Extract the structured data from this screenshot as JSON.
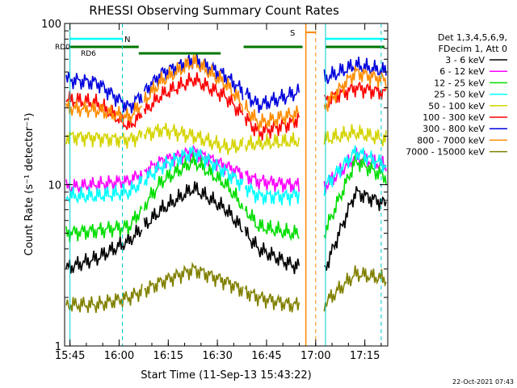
{
  "chart_data": {
    "type": "line",
    "title": "RHESSI Observing Summary Count Rates",
    "xlabel": "Start Time (11-Sep-13 15:43:22)",
    "ylabel": "Count Rate (s⁻¹ detector⁻¹)",
    "y_scale": "log",
    "ylim": [
      1,
      100
    ],
    "xlim": [
      "15:43:22",
      "17:22:00"
    ],
    "x_ticks": [
      "15:45",
      "16:00",
      "16:15",
      "16:30",
      "16:45",
      "17:00",
      "17:15"
    ],
    "y_ticks": [
      "1",
      "10",
      "100"
    ],
    "legend_title_lines": [
      "Det 1,3,4,5,6,9,",
      "FDecim 1, Att 0"
    ],
    "legend_position": "right",
    "series": [
      {
        "name": "3 - 6 keV",
        "color": "#000000",
        "values": [
          3.0,
          3.5,
          4.5,
          7.0,
          9.5,
          7.0,
          4.0,
          3.2,
          2.8,
          9,
          7.5
        ]
      },
      {
        "name": "6 - 12 keV",
        "color": "#ff00ff",
        "values": [
          9.5,
          10.0,
          10.5,
          14.0,
          16.0,
          13.0,
          10.5,
          10.0,
          9.5,
          15,
          13
        ]
      },
      {
        "name": "12 - 25 keV",
        "color": "#00dd00",
        "values": [
          5.0,
          5.2,
          5.5,
          10.5,
          14.0,
          10.0,
          5.5,
          5.0,
          4.8,
          14,
          11
        ]
      },
      {
        "name": "25 - 50 keV",
        "color": "#00ffff",
        "values": [
          8.5,
          8.5,
          9.0,
          13.0,
          16.0,
          12.0,
          8.5,
          8.5,
          9.5,
          16,
          13
        ]
      },
      {
        "name": "50 - 100 keV",
        "color": "#d4d400",
        "values": [
          20.0,
          19.5,
          19.0,
          22.0,
          20.0,
          17.0,
          18.0,
          18.5,
          19.0,
          21,
          19
        ]
      },
      {
        "name": "100 - 300 keV",
        "color": "#ff0000",
        "values": [
          34.0,
          32.0,
          23.0,
          36.0,
          45.0,
          35.0,
          21.0,
          24.0,
          33.0,
          40,
          37
        ]
      },
      {
        "name": "300 - 800 keV",
        "color": "#0000dd",
        "values": [
          45.0,
          43.0,
          30.0,
          49.0,
          60.0,
          47.0,
          31.0,
          36.0,
          45.0,
          55,
          50
        ]
      },
      {
        "name": "800 - 7000 keV",
        "color": "#ff8c00",
        "values": [
          30.0,
          29.0,
          26.0,
          44.0,
          58.0,
          42.0,
          24.0,
          27.0,
          30.0,
          50,
          44
        ]
      },
      {
        "name": "7000 - 15000 keV",
        "color": "#808000",
        "values": [
          1.8,
          1.8,
          2.0,
          2.5,
          3.0,
          2.5,
          2.0,
          1.8,
          1.8,
          2.8,
          2.6
        ]
      }
    ],
    "attenuator_labels": [
      "RD0",
      "RD6"
    ],
    "night_label": "N",
    "saa_label": "S"
  },
  "footer": {
    "timestamp": "22-Oct-2021 07:43"
  }
}
